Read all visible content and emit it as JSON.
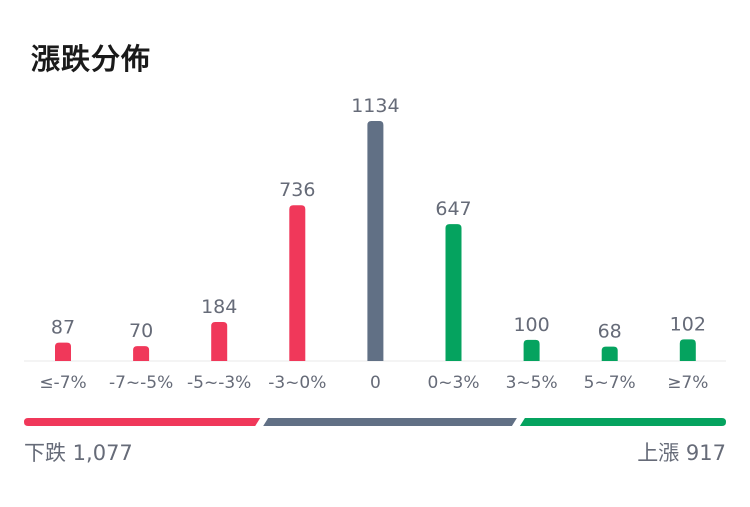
{
  "title": "漲跌分佈",
  "chart_data": {
    "type": "bar",
    "categories": [
      "≤-7%",
      "-7~-5%",
      "-5~-3%",
      "-3~0%",
      "0",
      "0~3%",
      "3~5%",
      "5~7%",
      "≥7%"
    ],
    "values": [
      87,
      70,
      184,
      736,
      1134,
      647,
      100,
      68,
      102
    ],
    "bar_colors": [
      "#f0385a",
      "#f0385a",
      "#f0385a",
      "#f0385a",
      "#617085",
      "#05a35f",
      "#05a35f",
      "#05a35f",
      "#05a35f"
    ],
    "ylim": [
      0,
      1134
    ],
    "grid": false,
    "legend": "none"
  },
  "colors": {
    "down": "#f0385a",
    "flat": "#617085",
    "up": "#05a35f",
    "label": "#666b78",
    "title": "#1a1a1a"
  },
  "summary": {
    "down_label": "下跌 1,077",
    "down_count": 1077,
    "up_label": "上漲 917",
    "up_count": 917,
    "flat_count": 1134
  }
}
